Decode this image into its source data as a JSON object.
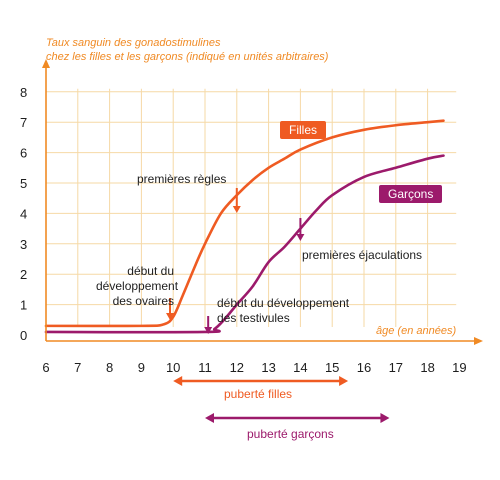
{
  "chart_data": {
    "type": "line",
    "title": "Taux sanguin des gonadostimulines chez les filles et les garçons (indiqué en unités arbitraires)",
    "xlabel": "âge (en années)",
    "ylabel": "",
    "xlim": [
      6,
      19
    ],
    "ylim": [
      0,
      8
    ],
    "xticks": [
      6,
      7,
      8,
      9,
      10,
      11,
      12,
      13,
      14,
      15,
      16,
      17,
      18,
      19
    ],
    "yticks": [
      0,
      1,
      2,
      3,
      4,
      5,
      6,
      7,
      8
    ],
    "grid": true,
    "series": [
      {
        "name": "Filles",
        "color": "#ef5b22",
        "x": [
          6,
          9,
          9.7,
          10,
          10.3,
          10.7,
          11,
          11.5,
          12,
          12.5,
          13,
          13.5,
          14,
          15,
          16,
          17,
          18,
          18.5
        ],
        "y": [
          0.3,
          0.3,
          0.35,
          0.6,
          1.3,
          2.3,
          3.0,
          4.0,
          4.6,
          5.1,
          5.5,
          5.8,
          6.1,
          6.5,
          6.75,
          6.9,
          7.0,
          7.05
        ]
      },
      {
        "name": "Garçons",
        "color": "#9c1a6b",
        "x": [
          6,
          11,
          11.3,
          11.6,
          12,
          12.5,
          13,
          13.5,
          14,
          14.5,
          15,
          16,
          17,
          18,
          18.5
        ],
        "y": [
          0.1,
          0.1,
          0.2,
          0.5,
          1.0,
          1.6,
          2.4,
          2.9,
          3.5,
          4.1,
          4.6,
          5.2,
          5.5,
          5.8,
          5.9
        ]
      }
    ],
    "annotations": [
      {
        "id": "premieres-regles",
        "lines": [
          "premières règles"
        ],
        "x": 12,
        "color": "#ef5b22"
      },
      {
        "id": "premieres-ejaculations",
        "lines": [
          "premières éjaculations"
        ],
        "x": 14,
        "color": "#9c1a6b"
      },
      {
        "id": "debut-ovaires",
        "lines": [
          "début du",
          "développement",
          "des ovaires"
        ],
        "x": 9.9,
        "color": "#ef5b22"
      },
      {
        "id": "debut-testicules",
        "lines": [
          "début du développement",
          "des testivules"
        ],
        "x": 11.1,
        "color": "#9c1a6b"
      }
    ],
    "spans": [
      {
        "label": "puberté filles",
        "from": 10,
        "to": 15.5,
        "color": "#ef5b22"
      },
      {
        "label": "puberté garçons",
        "from": 11,
        "to": 16.8,
        "color": "#9c1a6b"
      }
    ],
    "colors": {
      "axis": "#f08a24",
      "grid": "#f6d9a6"
    }
  }
}
